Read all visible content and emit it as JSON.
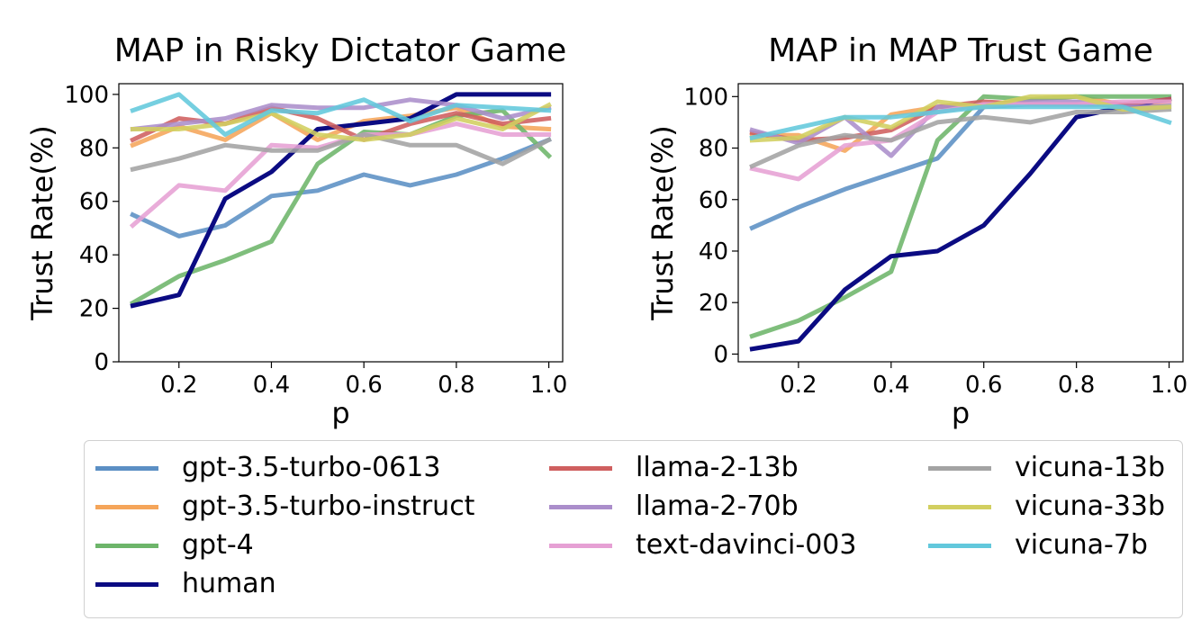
{
  "chart_data": [
    {
      "type": "line",
      "title": "MAP in Risky Dictator Game",
      "xlabel": "p",
      "ylabel": "Trust Rate(%)",
      "xlim": [
        0.07,
        1.03
      ],
      "ylim": [
        0,
        104
      ],
      "xticks": [
        "0.2",
        "0.4",
        "0.6",
        "0.8",
        "1.0"
      ],
      "yticks": [
        "0",
        "20",
        "40",
        "60",
        "80",
        "100"
      ],
      "x": [
        0.1,
        0.2,
        0.3,
        0.4,
        0.5,
        0.6,
        0.7,
        0.8,
        0.9,
        1.0
      ],
      "series": [
        {
          "name": "gpt-3.5-turbo-0613",
          "values": [
            55,
            47,
            51,
            62,
            64,
            70,
            66,
            70,
            76,
            83
          ]
        },
        {
          "name": "gpt-3.5-turbo-instruct",
          "values": [
            81,
            88,
            83,
            93,
            83,
            90,
            92,
            95,
            88,
            87
          ]
        },
        {
          "name": "gpt-4",
          "values": [
            22,
            32,
            38,
            45,
            74,
            86,
            85,
            92,
            94,
            77
          ]
        },
        {
          "name": "human",
          "values": [
            21,
            25,
            61,
            71,
            87,
            89,
            91,
            100,
            100,
            100
          ]
        },
        {
          "name": "llama-2-13b",
          "values": [
            83,
            91,
            89,
            95,
            91,
            83,
            89,
            93,
            89,
            91
          ]
        },
        {
          "name": "llama-2-70b",
          "values": [
            87,
            89,
            91,
            96,
            95,
            95,
            98,
            96,
            91,
            95
          ]
        },
        {
          "name": "text-davinci-003",
          "values": [
            51,
            66,
            64,
            81,
            80,
            85,
            85,
            89,
            85,
            85
          ]
        },
        {
          "name": "vicuna-13b",
          "values": [
            72,
            76,
            81,
            79,
            79,
            85,
            81,
            81,
            74,
            83
          ]
        },
        {
          "name": "vicuna-33b",
          "values": [
            87,
            87,
            89,
            93,
            85,
            83,
            85,
            91,
            87,
            96
          ]
        },
        {
          "name": "vicuna-7b",
          "values": [
            94,
            100,
            85,
            94,
            93,
            98,
            90,
            96,
            95,
            94
          ]
        }
      ]
    },
    {
      "type": "line",
      "title": "MAP in MAP Trust Game",
      "xlabel": "p",
      "ylabel": "Trust Rate(%)",
      "xlim": [
        0.07,
        1.03
      ],
      "ylim": [
        -3,
        105
      ],
      "xticks": [
        "0.2",
        "0.4",
        "0.6",
        "0.8",
        "1.0"
      ],
      "yticks": [
        "0",
        "20",
        "40",
        "60",
        "80",
        "100"
      ],
      "x": [
        0.1,
        0.2,
        0.3,
        0.4,
        0.5,
        0.6,
        0.7,
        0.8,
        0.9,
        1.0
      ],
      "series": [
        {
          "name": "gpt-3.5-turbo-0613",
          "values": [
            49,
            57,
            64,
            70,
            76,
            96,
            97,
            97,
            97,
            97
          ]
        },
        {
          "name": "gpt-3.5-turbo-instruct",
          "values": [
            85,
            85,
            79,
            93,
            96,
            96,
            99,
            100,
            97,
            98
          ]
        },
        {
          "name": "gpt-4",
          "values": [
            7,
            13,
            22,
            32,
            83,
            100,
            99,
            100,
            100,
            100
          ]
        },
        {
          "name": "human",
          "values": [
            2,
            5,
            25,
            38,
            40,
            50,
            70,
            92,
            96,
            99
          ]
        },
        {
          "name": "llama-2-13b",
          "values": [
            86,
            83,
            84,
            87,
            96,
            98,
            97,
            97,
            97,
            99
          ]
        },
        {
          "name": "llama-2-70b",
          "values": [
            87,
            82,
            92,
            77,
            96,
            96,
            98,
            98,
            96,
            96
          ]
        },
        {
          "name": "text-davinci-003",
          "values": [
            72,
            68,
            81,
            83,
            94,
            97,
            97,
            97,
            98,
            98
          ]
        },
        {
          "name": "vicuna-13b",
          "values": [
            73,
            81,
            85,
            83,
            90,
            92,
            90,
            94,
            94,
            95
          ]
        },
        {
          "name": "vicuna-33b",
          "values": [
            83,
            84,
            92,
            88,
            98,
            96,
            100,
            100,
            95,
            96
          ]
        },
        {
          "name": "vicuna-7b",
          "values": [
            84,
            88,
            92,
            92,
            94,
            96,
            96,
            96,
            96,
            90
          ]
        }
      ]
    }
  ],
  "legend": {
    "items": [
      {
        "name": "gpt-3.5-turbo-0613",
        "color": "#5b8fc4"
      },
      {
        "name": "gpt-3.5-turbo-instruct",
        "color": "#f5a55a"
      },
      {
        "name": "gpt-4",
        "color": "#6db56a"
      },
      {
        "name": "human",
        "color": "#0b0b82"
      },
      {
        "name": "llama-2-13b",
        "color": "#cf5f5f"
      },
      {
        "name": "llama-2-70b",
        "color": "#ab8ecb"
      },
      {
        "name": "text-davinci-003",
        "color": "#e6a0d4"
      },
      {
        "name": "vicuna-13b",
        "color": "#a3a3a3"
      },
      {
        "name": "vicuna-33b",
        "color": "#d2cf60"
      },
      {
        "name": "vicuna-7b",
        "color": "#62c8dc"
      }
    ]
  }
}
